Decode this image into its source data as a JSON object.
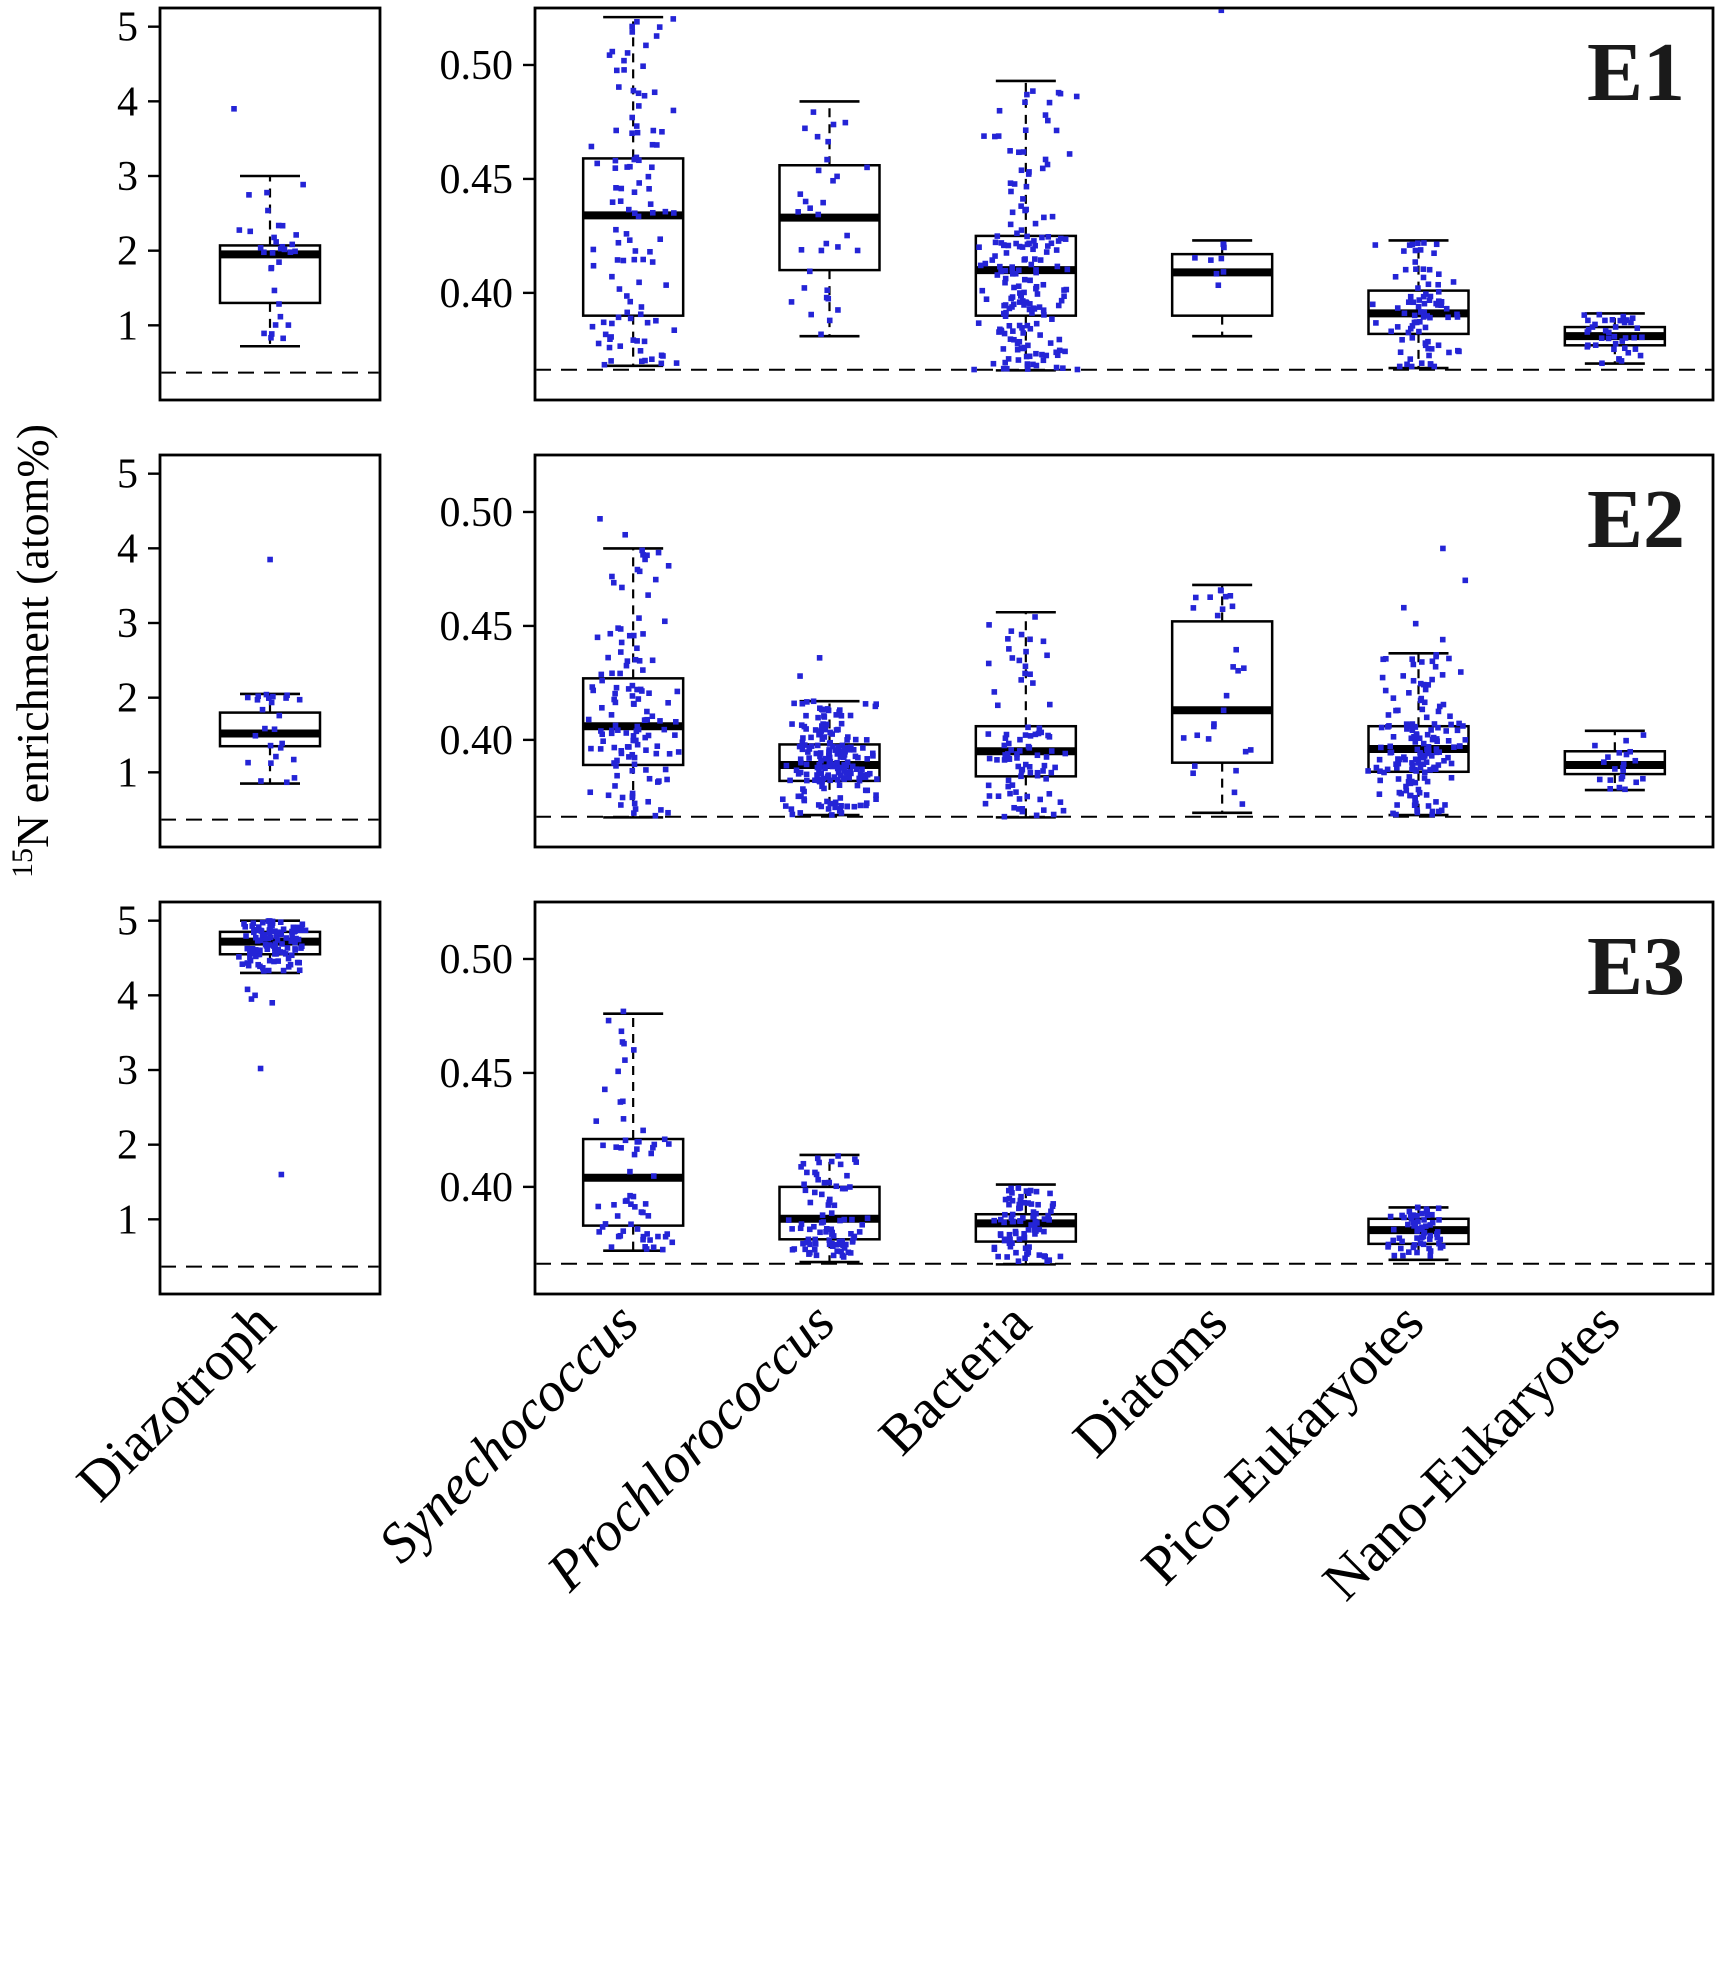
{
  "chart_data": {
    "type": "boxplot-scatter",
    "ylabel_superscript": "15",
    "ylabel_text": "N enrichment (atom%)",
    "point_color": "#2424d6",
    "box_color": "#000000",
    "background_color": "#ffffff",
    "reference_line": {
      "value": 0.3663,
      "style": "dashed"
    },
    "stats_order": [
      "min",
      "q1",
      "median",
      "q3",
      "max"
    ],
    "left_axis": {
      "ylim": [
        0,
        5.25
      ],
      "ticks": [
        {
          "v": 5,
          "label": "5"
        },
        {
          "v": 4,
          "label": "4"
        },
        {
          "v": 3,
          "label": "3"
        },
        {
          "v": 2,
          "label": "2"
        },
        {
          "v": 1,
          "label": "1"
        }
      ],
      "categories": [
        {
          "label": "Diazotroph",
          "italic": false
        }
      ]
    },
    "right_axis": {
      "ylim": [
        0.353,
        0.525
      ],
      "ticks": [
        {
          "v": 0.5,
          "label": "0.50"
        },
        {
          "v": 0.45,
          "label": "0.45"
        },
        {
          "v": 0.4,
          "label": "0.40"
        }
      ],
      "categories": [
        {
          "label": "Synechococcus",
          "italic": true
        },
        {
          "label": "Prochlorococcus",
          "italic": true
        },
        {
          "label": "Bacteria",
          "italic": false
        },
        {
          "label": "Diatoms",
          "italic": false
        },
        {
          "label": "Pico-Eukaryotes",
          "italic": false
        },
        {
          "label": "Nano-Eukaryotes",
          "italic": false
        }
      ]
    },
    "rows": [
      {
        "label": "E1",
        "diazotroph": {
          "n": 32,
          "spread": 38,
          "stats": [
            0.72,
            1.3,
            1.95,
            2.07,
            3.0
          ],
          "extra": [
            3.9
          ]
        },
        "groups": [
          {
            "n": 105,
            "spread": 50,
            "stats": [
              0.368,
              0.39,
              0.434,
              0.459,
              0.521
            ],
            "extra": []
          },
          {
            "n": 33,
            "spread": 42,
            "stats": [
              0.381,
              0.41,
              0.433,
              0.456,
              0.484
            ],
            "extra": []
          },
          {
            "n": 185,
            "spread": 55,
            "stats": [
              0.366,
              0.39,
              0.41,
              0.425,
              0.493
            ],
            "extra": []
          },
          {
            "n": 9,
            "spread": 30,
            "stats": [
              0.381,
              0.39,
              0.409,
              0.417,
              0.423
            ],
            "extra": [
              0.524
            ]
          },
          {
            "n": 85,
            "spread": 48,
            "stats": [
              0.367,
              0.382,
              0.391,
              0.401,
              0.423
            ],
            "extra": []
          },
          {
            "n": 40,
            "spread": 38,
            "stats": [
              0.369,
              0.377,
              0.381,
              0.385,
              0.391
            ],
            "extra": []
          }
        ]
      },
      {
        "label": "E2",
        "diazotroph": {
          "n": 25,
          "spread": 36,
          "stats": [
            0.85,
            1.35,
            1.52,
            1.8,
            2.05
          ],
          "extra": [
            3.85
          ]
        },
        "groups": [
          {
            "n": 125,
            "spread": 50,
            "stats": [
              0.366,
              0.389,
              0.406,
              0.427,
              0.484
            ],
            "extra": [
              0.49,
              0.497
            ]
          },
          {
            "n": 195,
            "spread": 52,
            "stats": [
              0.367,
              0.382,
              0.389,
              0.398,
              0.417
            ],
            "extra": [
              0.428,
              0.436
            ]
          },
          {
            "n": 90,
            "spread": 48,
            "stats": [
              0.366,
              0.384,
              0.395,
              0.406,
              0.456
            ],
            "extra": []
          },
          {
            "n": 28,
            "spread": 40,
            "stats": [
              0.368,
              0.39,
              0.413,
              0.452,
              0.468
            ],
            "extra": []
          },
          {
            "n": 165,
            "spread": 52,
            "stats": [
              0.367,
              0.386,
              0.396,
              0.406,
              0.438
            ],
            "extra": [
              0.444,
              0.451,
              0.458,
              0.47,
              0.484
            ]
          },
          {
            "n": 22,
            "spread": 34,
            "stats": [
              0.378,
              0.385,
              0.389,
              0.395,
              0.404
            ],
            "extra": []
          }
        ]
      },
      {
        "label": "E3",
        "diazotroph": {
          "n": 110,
          "spread": 40,
          "stats": [
            4.3,
            4.55,
            4.72,
            4.85,
            5.0
          ],
          "extra": [
            4.08,
            4.0,
            3.95,
            3.9,
            3.02,
            1.6
          ]
        },
        "groups": [
          {
            "n": 62,
            "spread": 44,
            "stats": [
              0.372,
              0.383,
              0.404,
              0.421,
              0.476
            ],
            "extra": [
              0.477
            ]
          },
          {
            "n": 88,
            "spread": 46,
            "stats": [
              0.367,
              0.377,
              0.386,
              0.4,
              0.414
            ],
            "extra": []
          },
          {
            "n": 85,
            "spread": 44,
            "stats": [
              0.366,
              0.376,
              0.384,
              0.388,
              0.401
            ],
            "extra": []
          },
          null,
          {
            "n": 62,
            "spread": 42,
            "stats": [
              0.368,
              0.375,
              0.381,
              0.386,
              0.391
            ],
            "extra": []
          },
          null
        ]
      }
    ]
  }
}
